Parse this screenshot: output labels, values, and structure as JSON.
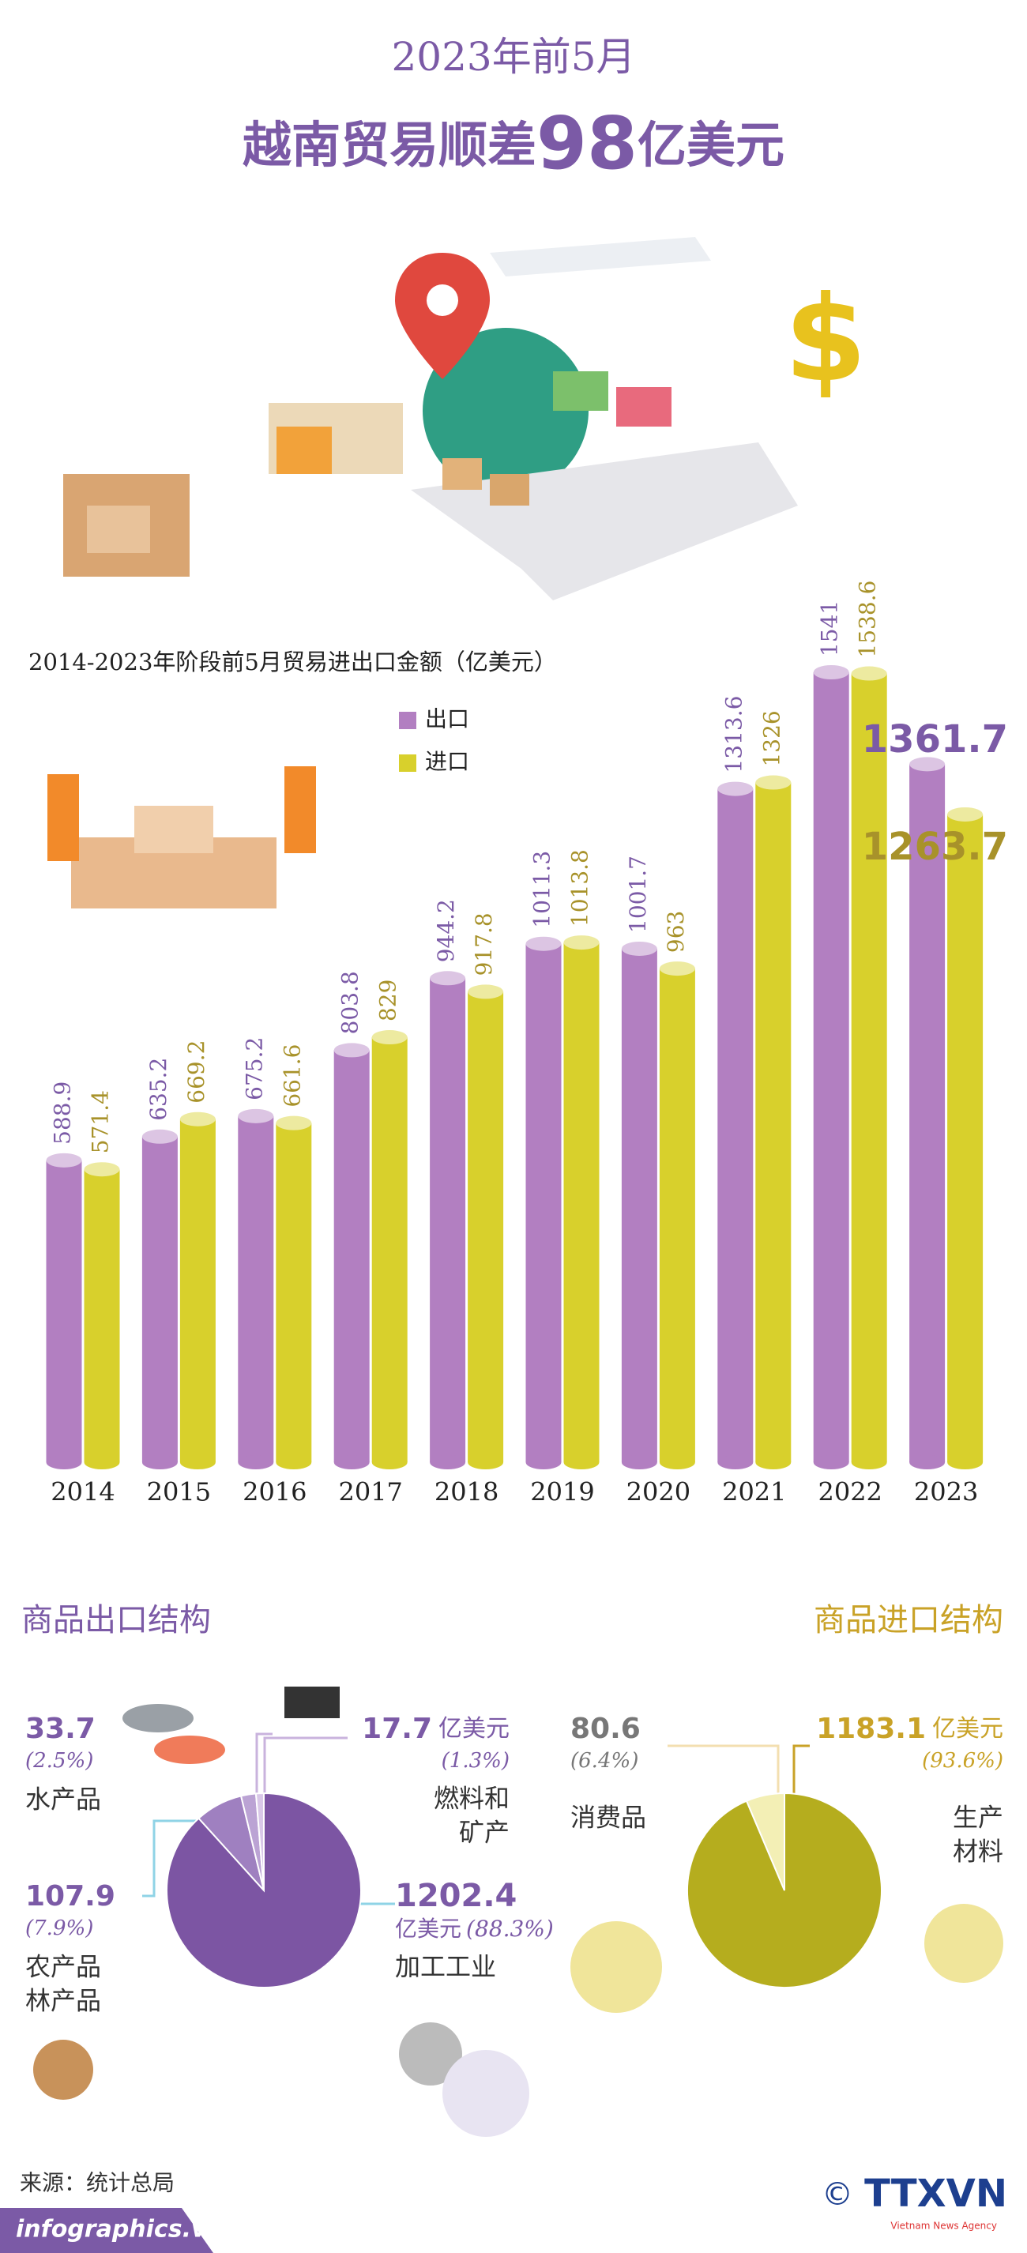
{
  "header": {
    "line1": "2023年前5月",
    "line2": [
      "越南贸易顺差",
      "98",
      "亿美元"
    ]
  },
  "chart_data": [
    {
      "type": "bar",
      "title": "2014-2023年阶段前5月贸易进出口金额（亿美元）",
      "categories": [
        "2014",
        "2015",
        "2016",
        "2017",
        "2018",
        "2019",
        "2020",
        "2021",
        "2022",
        "2023"
      ],
      "series": [
        {
          "name": "出口",
          "color": "#b27fc1",
          "values": [
            588.9,
            635.2,
            675.2,
            803.8,
            944.2,
            1011.3,
            1001.7,
            1313.6,
            1541,
            1361.7
          ]
        },
        {
          "name": "进口",
          "color": "#d8d02c",
          "values": [
            571.4,
            669.2,
            661.6,
            829,
            917.8,
            1013.8,
            963,
            1326,
            1538.6,
            1263.7
          ]
        }
      ],
      "legend": "upper-left"
    },
    {
      "type": "pie",
      "title": "商品出口结构",
      "items": [
        {
          "value": 1202.4,
          "unit": "亿美元",
          "share": 88.3,
          "share_label": "(88.3%)",
          "label": [
            "加工工业"
          ],
          "color": "#7c55a3"
        },
        {
          "value": 107.9,
          "share": 7.9,
          "share_label": "(7.9%)",
          "label": [
            "农产品",
            "林产品"
          ],
          "color": "#9f80c0"
        },
        {
          "value": 33.7,
          "share": 2.5,
          "share_label": "(2.5%)",
          "label": [
            "水产品"
          ],
          "color": "#bba3d4"
        },
        {
          "value": 17.7,
          "unit": "亿美元",
          "share": 1.3,
          "share_label": "(1.3%)",
          "label": [
            "燃料和",
            "矿产"
          ],
          "color": "#d9c8e8"
        }
      ]
    },
    {
      "type": "pie",
      "title": "商品进口结构",
      "items": [
        {
          "value": 1183.1,
          "unit": "亿美元",
          "share": 93.6,
          "share_label": "(93.6%)",
          "label": [
            "生产",
            "材料"
          ],
          "color": "#b5ad1e"
        },
        {
          "value": 80.6,
          "share": 6.4,
          "share_label": "(6.4%)",
          "label": [
            "消费品"
          ],
          "color": "#f3efb5"
        }
      ]
    }
  ],
  "footer": {
    "source": "来源：统计总局",
    "site": "infographics.vn",
    "logo": "TTXVN",
    "agency": "Vietnam News Agency"
  }
}
